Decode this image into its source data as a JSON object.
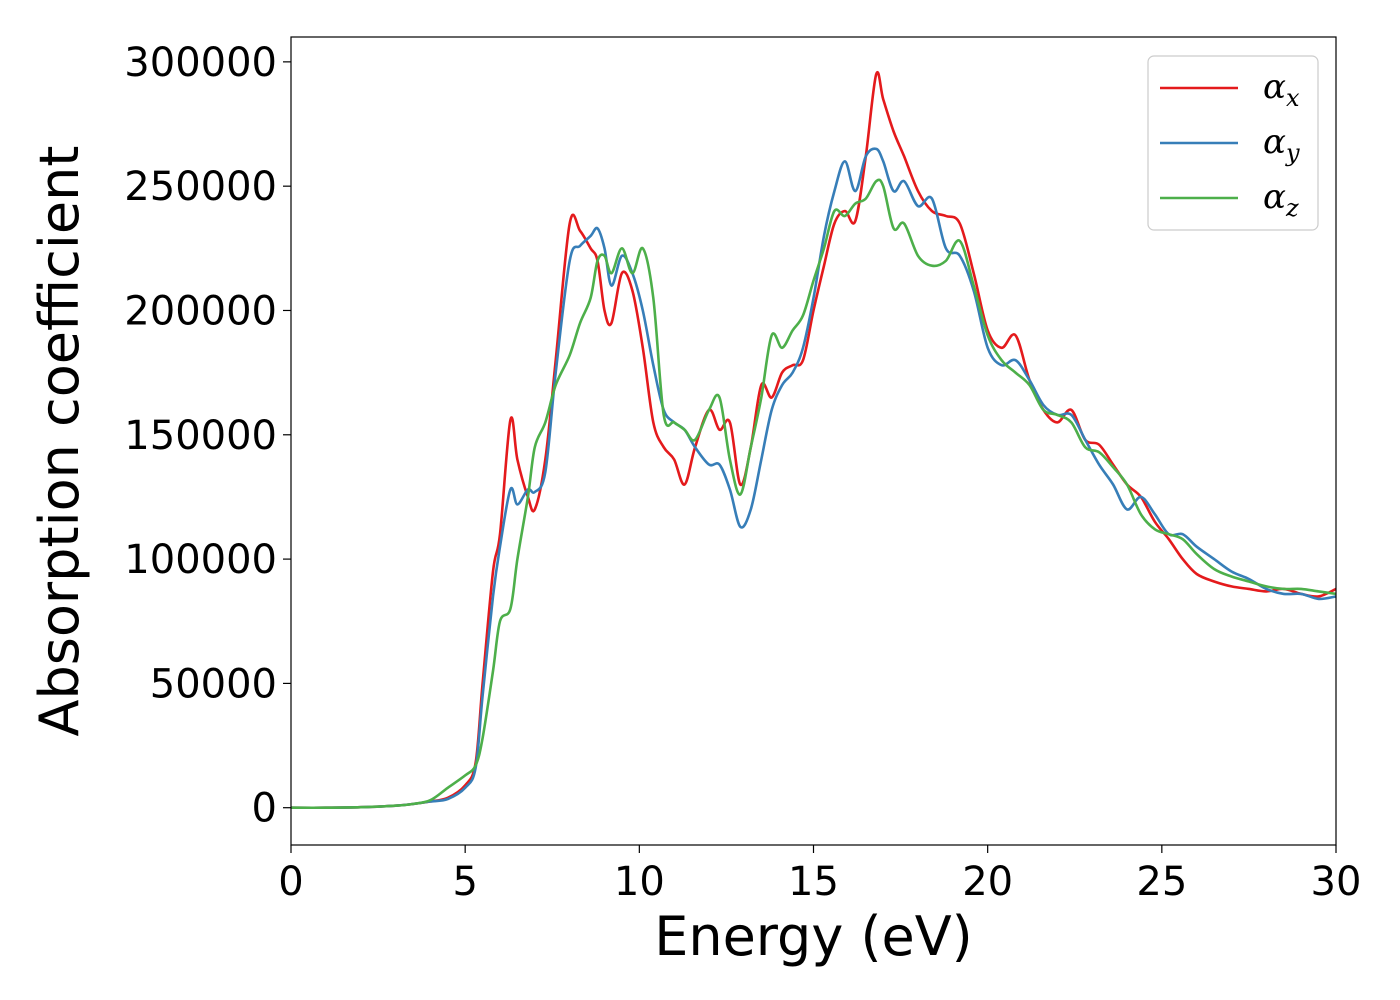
{
  "chart_data": {
    "type": "line",
    "title": "",
    "xlabel": "Energy (eV)",
    "ylabel": "Absorption coefficient",
    "xlim": [
      0,
      30
    ],
    "ylim": [
      -15000,
      310000
    ],
    "xticks": [
      0,
      5,
      10,
      15,
      20,
      25,
      30
    ],
    "xtick_labels": [
      "0",
      "5",
      "10",
      "15",
      "20",
      "25",
      "30"
    ],
    "yticks": [
      0,
      50000,
      100000,
      150000,
      200000,
      250000,
      300000
    ],
    "ytick_labels": [
      "0",
      "50000",
      "100000",
      "150000",
      "200000",
      "250000",
      "300000"
    ],
    "grid": false,
    "legend_position": "top-right",
    "series": [
      {
        "name": "α_x",
        "symbol": "α",
        "subscript": "x",
        "color": "#e41a1c",
        "x": [
          0,
          1,
          2,
          3,
          3.5,
          4,
          4.5,
          5,
          5.3,
          5.5,
          5.8,
          6.0,
          6.3,
          6.5,
          6.8,
          7.0,
          7.3,
          7.6,
          8.0,
          8.3,
          8.6,
          8.8,
          9.0,
          9.2,
          9.5,
          9.8,
          10.1,
          10.4,
          10.7,
          11.0,
          11.3,
          11.6,
          12.0,
          12.3,
          12.6,
          12.9,
          13.2,
          13.5,
          13.8,
          14.1,
          14.4,
          14.7,
          15.0,
          15.3,
          15.6,
          15.9,
          16.2,
          16.5,
          16.8,
          17.0,
          17.3,
          17.6,
          18.0,
          18.4,
          18.8,
          19.2,
          19.6,
          20.0,
          20.4,
          20.8,
          21.2,
          21.6,
          22.0,
          22.4,
          22.8,
          23.2,
          23.6,
          24.0,
          24.4,
          24.8,
          25.2,
          25.6,
          26.0,
          26.5,
          27.0,
          27.5,
          28.0,
          28.5,
          29.0,
          29.5,
          30.0
        ],
        "y": [
          0,
          0,
          200,
          800,
          1500,
          2500,
          4000,
          9000,
          18000,
          50000,
          95000,
          110000,
          156000,
          140000,
          125000,
          120000,
          140000,
          180000,
          235000,
          232000,
          225000,
          220000,
          200000,
          195000,
          215000,
          208000,
          185000,
          155000,
          145000,
          140000,
          130000,
          145000,
          160000,
          152000,
          155000,
          130000,
          145000,
          170000,
          165000,
          175000,
          178000,
          180000,
          200000,
          218000,
          235000,
          240000,
          236000,
          262000,
          295000,
          285000,
          272000,
          262000,
          248000,
          240000,
          238000,
          235000,
          215000,
          192000,
          185000,
          190000,
          172000,
          160000,
          155000,
          160000,
          148000,
          146000,
          138000,
          130000,
          125000,
          115000,
          108000,
          100000,
          94000,
          91000,
          89000,
          88000,
          87000,
          88000,
          86000,
          85000,
          88000
        ]
      },
      {
        "name": "α_y",
        "symbol": "α",
        "subscript": "y",
        "color": "#377eb8",
        "x": [
          0,
          1,
          2,
          3,
          3.5,
          4,
          4.5,
          5,
          5.3,
          5.5,
          5.8,
          6.0,
          6.3,
          6.5,
          6.8,
          7.0,
          7.3,
          7.6,
          8.0,
          8.3,
          8.6,
          8.8,
          9.0,
          9.2,
          9.5,
          9.8,
          10.1,
          10.4,
          10.7,
          11.0,
          11.3,
          11.6,
          12.0,
          12.3,
          12.6,
          12.9,
          13.2,
          13.5,
          13.8,
          14.1,
          14.4,
          14.7,
          15.0,
          15.3,
          15.6,
          15.9,
          16.2,
          16.5,
          16.8,
          17.0,
          17.3,
          17.6,
          18.0,
          18.4,
          18.8,
          19.2,
          19.6,
          20.0,
          20.4,
          20.8,
          21.2,
          21.6,
          22.0,
          22.4,
          22.8,
          23.2,
          23.6,
          24.0,
          24.4,
          24.8,
          25.2,
          25.6,
          26.0,
          26.5,
          27.0,
          27.5,
          28.0,
          28.5,
          29.0,
          29.5,
          30.0
        ],
        "y": [
          0,
          0,
          200,
          800,
          1500,
          2500,
          3500,
          8000,
          16000,
          45000,
          85000,
          105000,
          128000,
          122000,
          128000,
          127000,
          135000,
          175000,
          220000,
          226000,
          230000,
          233000,
          225000,
          210000,
          222000,
          215000,
          200000,
          178000,
          160000,
          155000,
          152000,
          145000,
          138000,
          138000,
          128000,
          113000,
          120000,
          140000,
          160000,
          170000,
          175000,
          185000,
          205000,
          230000,
          248000,
          260000,
          248000,
          262000,
          265000,
          260000,
          248000,
          252000,
          242000,
          245000,
          225000,
          222000,
          208000,
          185000,
          178000,
          180000,
          172000,
          162000,
          158000,
          158000,
          148000,
          138000,
          130000,
          120000,
          125000,
          118000,
          110000,
          110000,
          105000,
          100000,
          95000,
          92000,
          88000,
          86000,
          86000,
          84000,
          85000
        ]
      },
      {
        "name": "α_z",
        "symbol": "α",
        "subscript": "z",
        "color": "#4daf4a",
        "x": [
          0,
          1,
          2,
          3,
          3.5,
          4,
          4.5,
          5,
          5.3,
          5.5,
          5.8,
          6.0,
          6.3,
          6.5,
          6.8,
          7.0,
          7.3,
          7.6,
          8.0,
          8.3,
          8.6,
          8.8,
          9.0,
          9.2,
          9.5,
          9.8,
          10.1,
          10.4,
          10.7,
          11.0,
          11.3,
          11.6,
          12.0,
          12.3,
          12.6,
          12.9,
          13.2,
          13.5,
          13.8,
          14.1,
          14.4,
          14.7,
          15.0,
          15.3,
          15.6,
          15.9,
          16.2,
          16.5,
          16.8,
          17.0,
          17.3,
          17.6,
          18.0,
          18.4,
          18.8,
          19.2,
          19.6,
          20.0,
          20.4,
          20.8,
          21.2,
          21.6,
          22.0,
          22.4,
          22.8,
          23.2,
          23.6,
          24.0,
          24.4,
          24.8,
          25.2,
          25.6,
          26.0,
          26.5,
          27.0,
          27.5,
          28.0,
          28.5,
          29.0,
          29.5,
          30.0
        ],
        "y": [
          0,
          0,
          200,
          800,
          1500,
          3000,
          8000,
          13000,
          17000,
          28000,
          55000,
          75000,
          80000,
          100000,
          125000,
          145000,
          155000,
          170000,
          182000,
          195000,
          205000,
          220000,
          222000,
          215000,
          225000,
          215000,
          225000,
          205000,
          158000,
          155000,
          152000,
          148000,
          160000,
          165000,
          140000,
          126000,
          145000,
          165000,
          190000,
          185000,
          192000,
          198000,
          212000,
          225000,
          240000,
          238000,
          243000,
          245000,
          252000,
          250000,
          233000,
          235000,
          222000,
          218000,
          220000,
          228000,
          210000,
          190000,
          180000,
          175000,
          170000,
          160000,
          158000,
          155000,
          145000,
          143000,
          137000,
          130000,
          118000,
          112000,
          110000,
          108000,
          102000,
          96000,
          93000,
          91000,
          89000,
          88000,
          88000,
          87000,
          86000
        ]
      }
    ]
  }
}
